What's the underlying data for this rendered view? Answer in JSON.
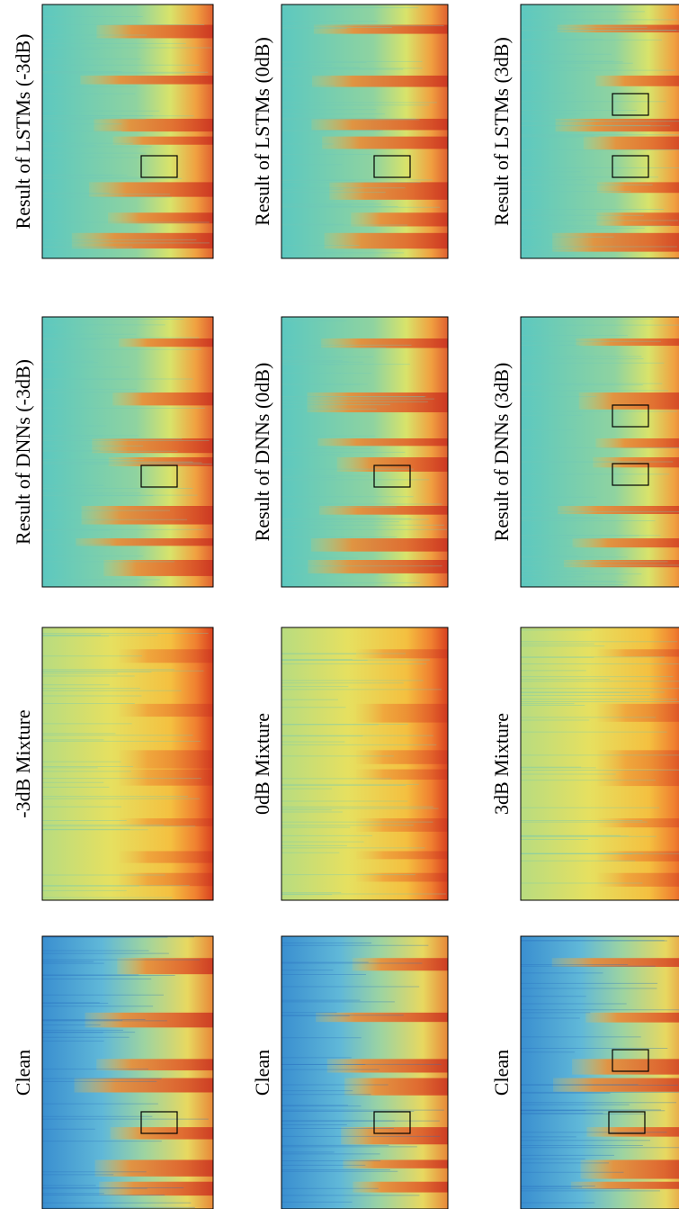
{
  "columns": [
    {
      "panels": [
        {
          "title": "Result of LSTMs (-3dB)"
        },
        {
          "title": "Result of DNNs (-3dB)"
        },
        {
          "title": "-3dB Mixture"
        },
        {
          "title": "Clean"
        }
      ]
    },
    {
      "panels": [
        {
          "title": "Result of LSTMs (0dB)"
        },
        {
          "title": "Result of DNNs (0dB)"
        },
        {
          "title": "0dB Mixture"
        },
        {
          "title": "Clean"
        }
      ]
    },
    {
      "panels": [
        {
          "title": "Result of LSTMs (3dB)"
        },
        {
          "title": "Result of DNNs (3dB)"
        },
        {
          "title": "3dB Mixture"
        },
        {
          "title": "Clean"
        }
      ]
    }
  ]
}
